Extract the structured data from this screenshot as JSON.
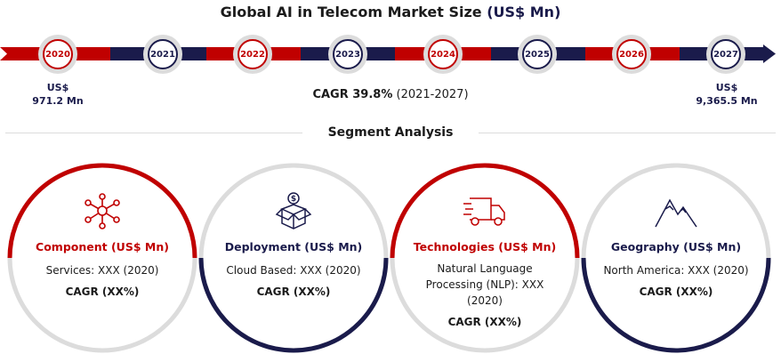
{
  "title": {
    "main": "Global AI in Telecom Market Size",
    "unit": "(US$ Mn)"
  },
  "timeline": {
    "years": [
      "2020",
      "2021",
      "2022",
      "2023",
      "2024",
      "2025",
      "2026",
      "2027"
    ],
    "start_value": {
      "currency": "US$",
      "amount": "971.2 Mn"
    },
    "end_value": {
      "currency": "US$",
      "amount": "9,365.5 Mn"
    },
    "cagr_label": "CAGR 39.8%",
    "cagr_period": "(2021-2027)"
  },
  "segment_heading": "Segment Analysis",
  "segments": [
    {
      "title": "Component (US$ Mn)",
      "line1": "Services: XXX (2020)",
      "cagr": "CAGR (XX%)",
      "icon": "network-nodes-icon"
    },
    {
      "title": "Deployment (US$ Mn)",
      "line1": "Cloud Based: XXX (2020)",
      "cagr": "CAGR (XX%)",
      "icon": "cloud-box-dollar-icon"
    },
    {
      "title": "Technologies (US$ Mn)",
      "line1": "Natural Language Processing (NLP): XXX (2020)",
      "cagr": "CAGR (XX%)",
      "icon": "delivery-truck-icon"
    },
    {
      "title": "Geography (US$ Mn)",
      "line1": "North America: XXX (2020)",
      "cagr": "CAGR (XX%)",
      "icon": "mountains-icon"
    }
  ],
  "colors": {
    "red": "#c00000",
    "navy": "#1a1b4b",
    "grey": "#dcdcdc"
  }
}
